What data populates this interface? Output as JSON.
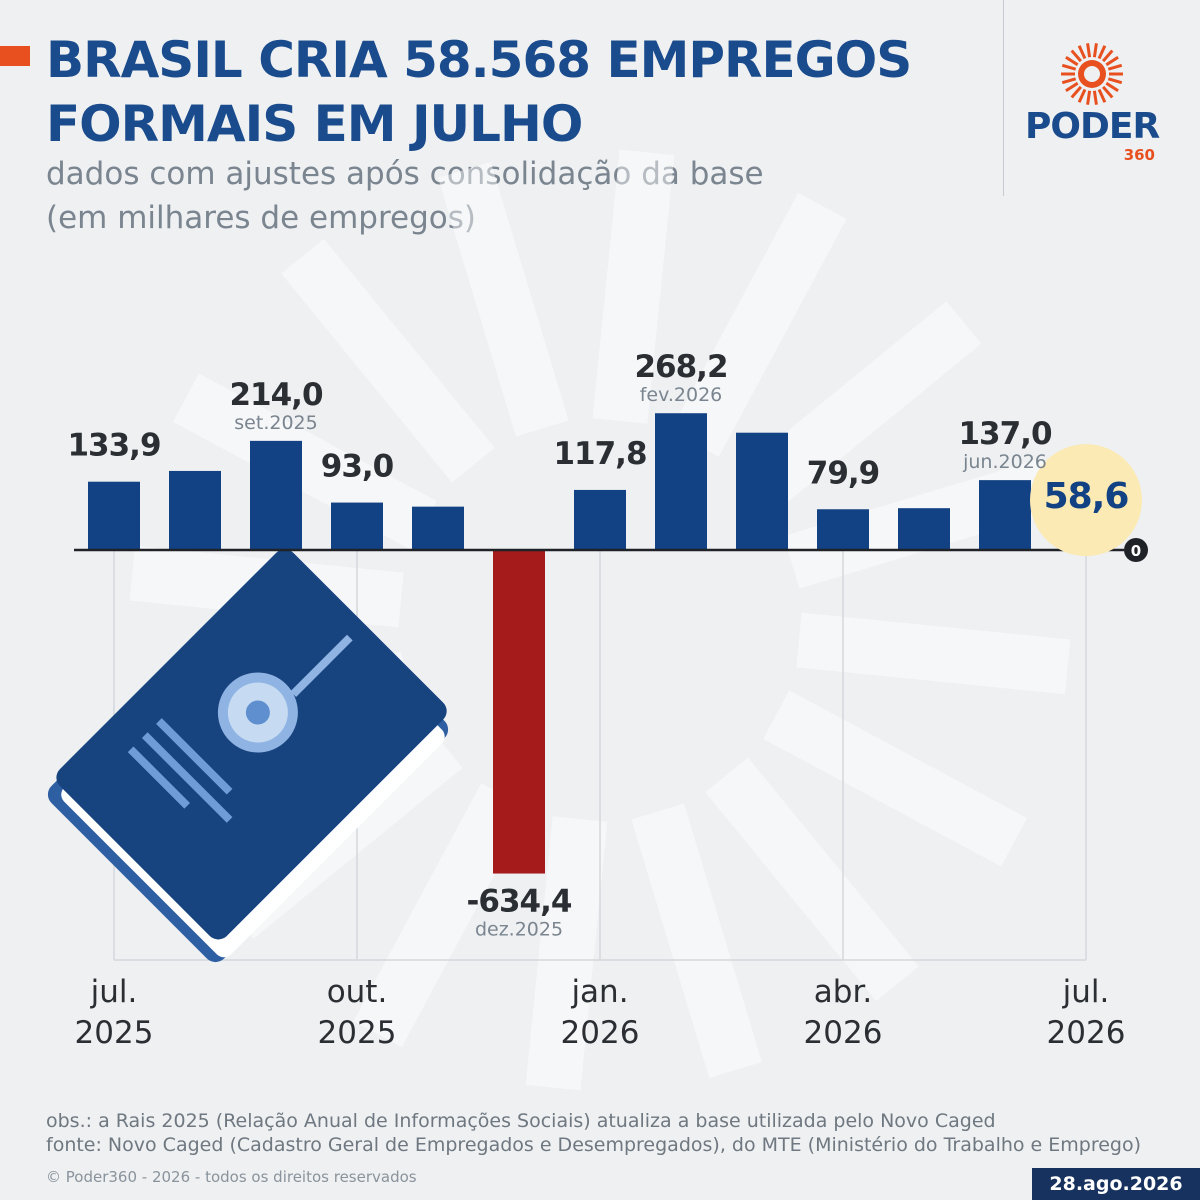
{
  "header": {
    "title_line1": "BRASIL CRIA 58.568 EMPREGOS",
    "title_line2": "FORMAIS EM JULHO",
    "subtitle_line1": "dados com ajustes após consolidação da base",
    "subtitle_line2": "(em milhares de empregos)"
  },
  "logo": {
    "name": "PODER",
    "number": "360"
  },
  "colors": {
    "positive_bar": "#124284",
    "negative_bar": "#a51b1b",
    "highlight": "#fbeab3",
    "title": "#1a4b8c",
    "accent": "#e8501f"
  },
  "chart_data": {
    "type": "bar",
    "title": "BRASIL CRIA 58.568 EMPREGOS FORMAIS EM JULHO",
    "subtitle": "dados com ajustes após consolidação da base (em milhares de empregos)",
    "categories": [
      "jul.2025",
      "ago.2025",
      "set.2025",
      "out.2025",
      "nov.2025",
      "dez.2025",
      "jan.2026",
      "fev.2026",
      "mar.2026",
      "abr.2026",
      "mai.2026",
      "jun.2026",
      "jul.2026"
    ],
    "values": [
      133.9,
      155.0,
      214.0,
      93.0,
      85.0,
      -634.4,
      117.8,
      268.2,
      230.0,
      79.9,
      82.0,
      137.0,
      58.6
    ],
    "data_labels": [
      {
        "index": 0,
        "value": "133,9",
        "date": ""
      },
      {
        "index": 2,
        "value": "214,0",
        "date": "set.2025"
      },
      {
        "index": 3,
        "value": "93,0",
        "date": ""
      },
      {
        "index": 5,
        "value": "-634,4",
        "date": "dez.2025"
      },
      {
        "index": 6,
        "value": "117,8",
        "date": ""
      },
      {
        "index": 7,
        "value": "268,2",
        "date": "fev.2026"
      },
      {
        "index": 9,
        "value": "79,9",
        "date": ""
      },
      {
        "index": 11,
        "value": "137,0",
        "date": "jun.2026"
      },
      {
        "index": 12,
        "value": "58,6",
        "date": ""
      }
    ],
    "highlight_index": 12,
    "x_ticks": [
      {
        "index": 0,
        "line1": "jul.",
        "line2": "2025"
      },
      {
        "index": 3,
        "line1": "out.",
        "line2": "2025"
      },
      {
        "index": 6,
        "line1": "jan.",
        "line2": "2026"
      },
      {
        "index": 9,
        "line1": "abr.",
        "line2": "2026"
      },
      {
        "index": 12,
        "line1": "jul.",
        "line2": "2026"
      }
    ],
    "zero_label": "0",
    "ylim": [
      -634.4,
      268.2
    ],
    "grid": true
  },
  "footer": {
    "obs": "obs.: a Rais 2025 (Relação Anual de Informações Sociais) atualiza a base utilizada pelo Novo Caged",
    "source": "fonte: Novo Caged (Cadastro Geral de Empregados e Desempregados), do MTE (Ministério do Trabalho e Emprego)",
    "copyright": "© Poder360 - 2026 - todos os direitos reservados",
    "date": "28.ago.2026"
  }
}
